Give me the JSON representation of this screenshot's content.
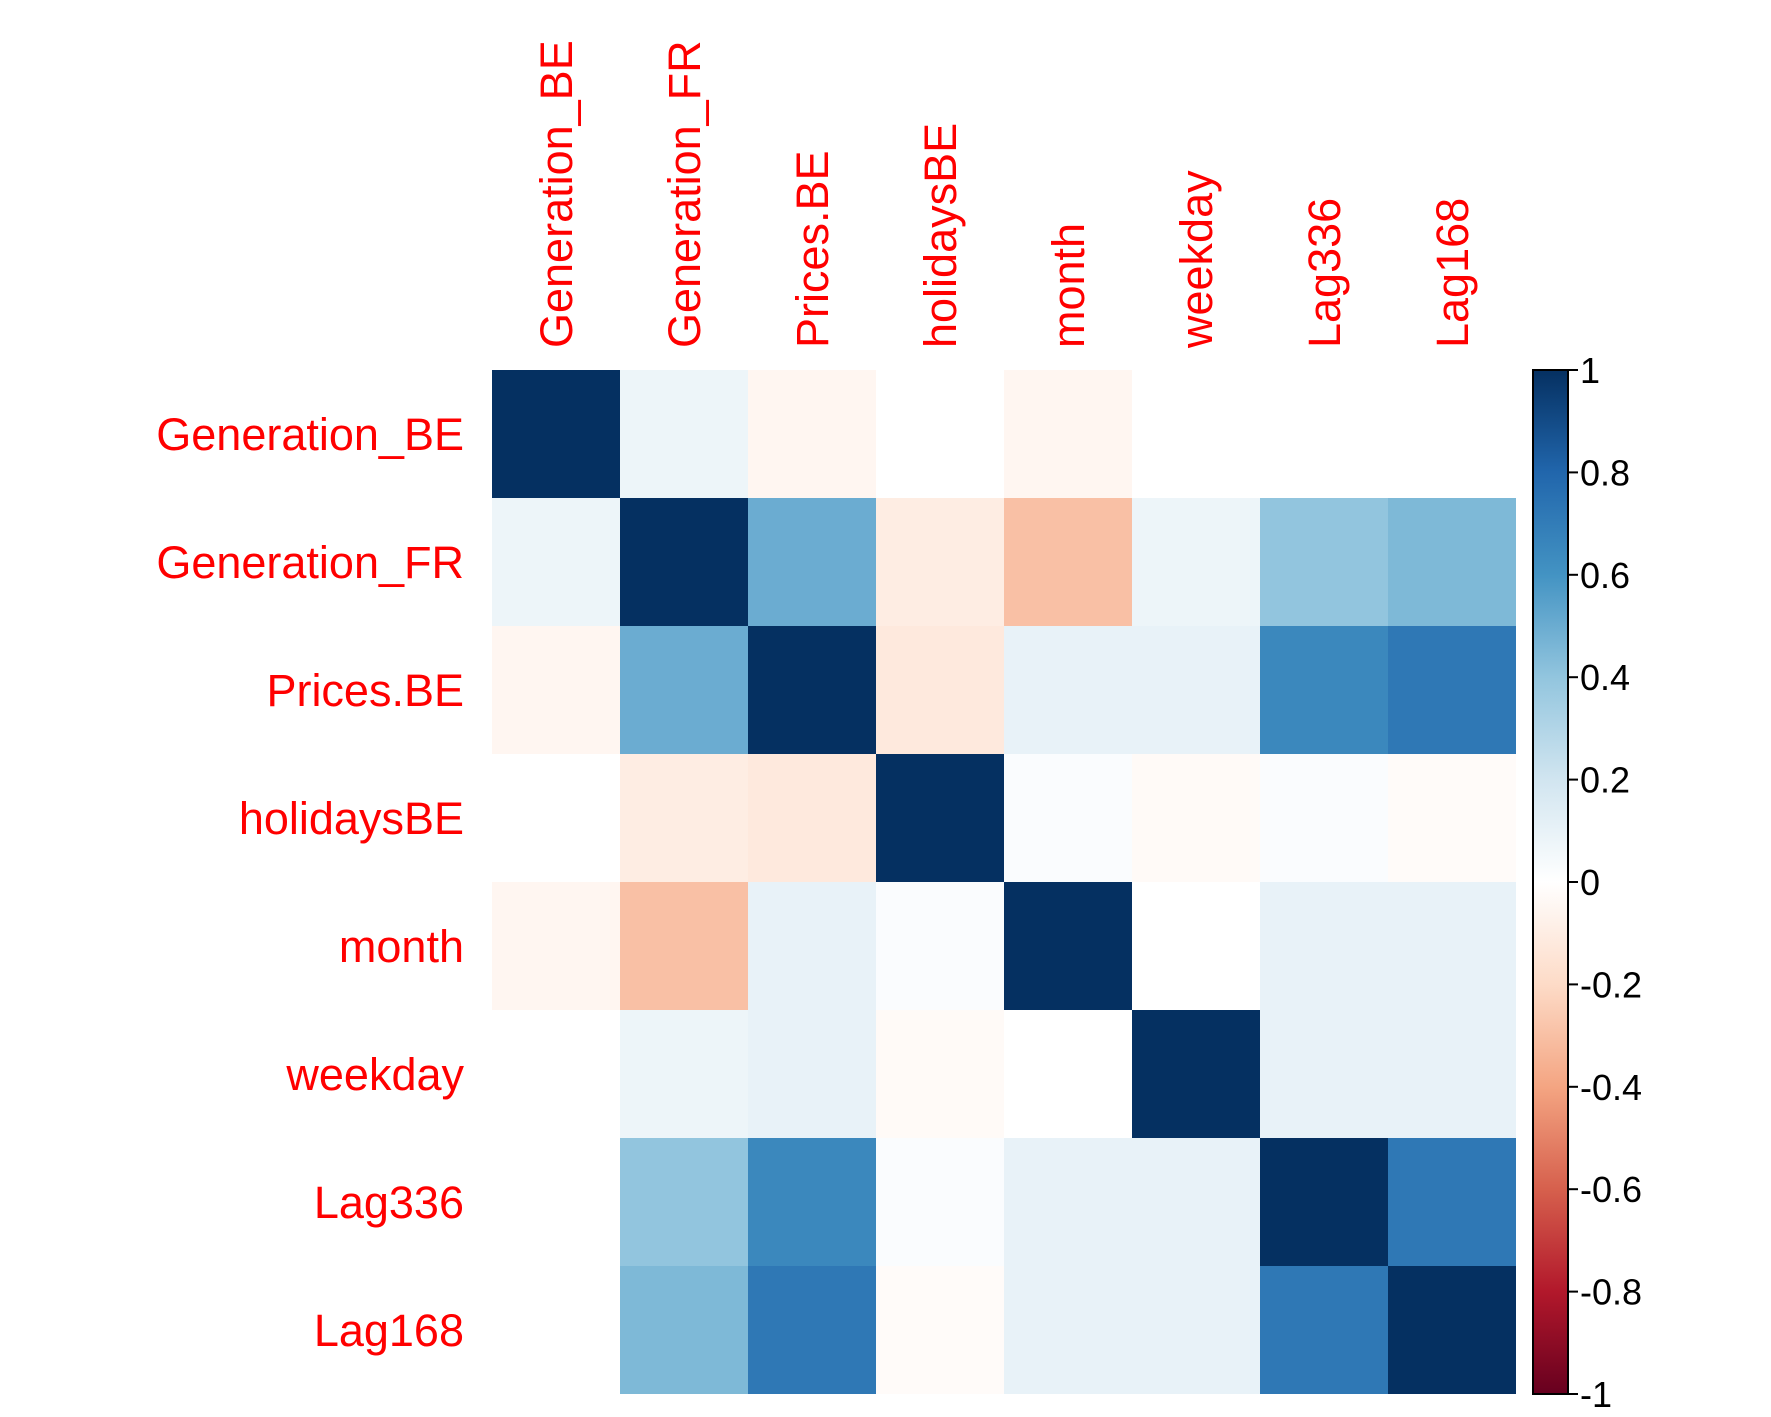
{
  "chart_data": {
    "type": "heatmap",
    "variables": [
      "Generation_BE",
      "Generation_FR",
      "Prices.BE",
      "holidaysBE",
      "month",
      "weekday",
      "Lag336",
      "Lag168"
    ],
    "matrix": [
      [
        1.0,
        0.08,
        -0.05,
        0.0,
        -0.05,
        0.0,
        0.0,
        0.0
      ],
      [
        0.08,
        1.0,
        0.5,
        -0.1,
        -0.3,
        0.08,
        0.4,
        0.45
      ],
      [
        -0.05,
        0.5,
        1.0,
        -0.12,
        0.1,
        0.1,
        0.65,
        0.72
      ],
      [
        0.0,
        -0.1,
        -0.12,
        1.0,
        0.02,
        -0.03,
        0.02,
        -0.02
      ],
      [
        -0.05,
        -0.3,
        0.1,
        0.02,
        1.0,
        0.0,
        0.1,
        0.1
      ],
      [
        0.0,
        0.08,
        0.1,
        -0.03,
        0.0,
        1.0,
        0.1,
        0.1
      ],
      [
        0.0,
        0.4,
        0.65,
        0.02,
        0.1,
        0.1,
        1.0,
        0.72
      ],
      [
        0.0,
        0.45,
        0.72,
        -0.02,
        0.1,
        0.1,
        0.72,
        1.0
      ]
    ],
    "colorbar": {
      "range": [
        -1,
        1
      ],
      "ticks": [
        "1",
        "0.8",
        "0.6",
        "0.4",
        "0.2",
        "0",
        "-0.2",
        "-0.4",
        "-0.6",
        "-0.8",
        "-1"
      ]
    },
    "colors": {
      "label": "#ff0000",
      "scale": [
        [
          -1.0,
          "#67001f"
        ],
        [
          -0.8,
          "#b2182b"
        ],
        [
          -0.6,
          "#d6604d"
        ],
        [
          -0.4,
          "#f4a582"
        ],
        [
          -0.2,
          "#fddbc7"
        ],
        [
          0.0,
          "#ffffff"
        ],
        [
          0.2,
          "#d1e5f0"
        ],
        [
          0.4,
          "#92c5de"
        ],
        [
          0.6,
          "#4393c3"
        ],
        [
          0.8,
          "#2166ac"
        ],
        [
          1.0,
          "#053061"
        ]
      ]
    }
  }
}
